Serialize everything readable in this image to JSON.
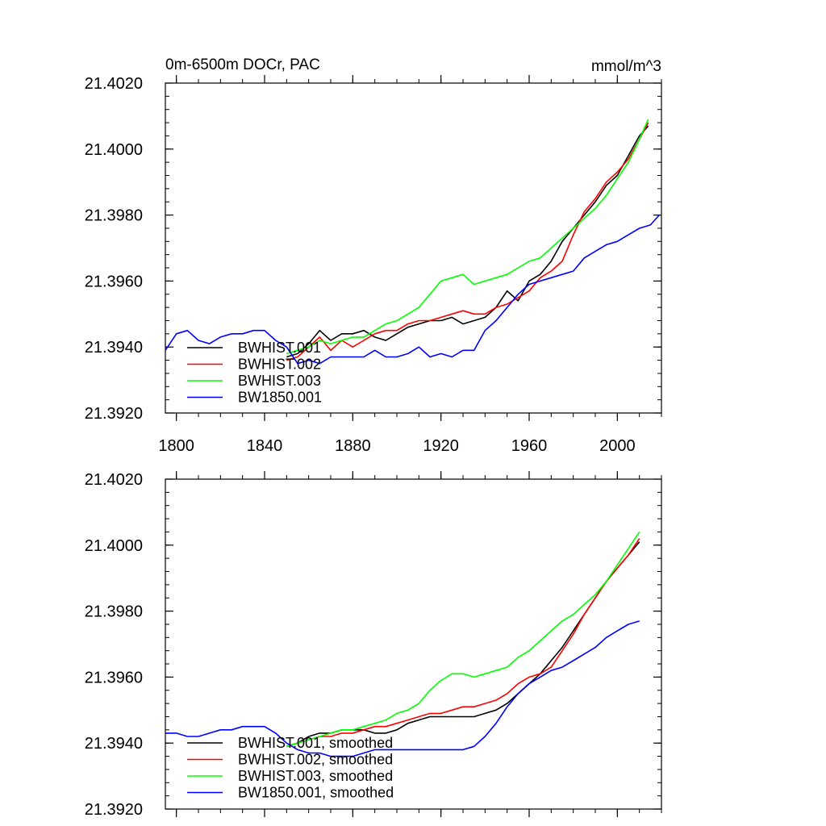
{
  "figure": {
    "title_left": "0m-6500m DOCr, PAC",
    "title_right": "mmol/m^3"
  },
  "colors": {
    "BWHIST.001": "#000000",
    "BWHIST.002": "#ff0000",
    "BWHIST.003": "#00ff00",
    "BW1850.001": "#0000ff"
  },
  "chart_data": [
    {
      "type": "line",
      "panel": "annual",
      "title": "0m-6500m DOCr, PAC",
      "units": "mmol/m^3",
      "xlim": [
        1795,
        2020
      ],
      "ylim": [
        21.392,
        21.402
      ],
      "xticks": [
        1800,
        1840,
        1880,
        1920,
        1960,
        2000
      ],
      "xtick_labels": [
        "1800",
        "1840",
        "1880",
        "1920",
        "1960",
        "2000"
      ],
      "show_xtick_labels": true,
      "yticks": [
        21.392,
        21.394,
        21.396,
        21.398,
        21.4,
        21.402
      ],
      "ytick_labels": [
        "21.3920",
        "21.3940",
        "21.3960",
        "21.3980",
        "21.4000",
        "21.4020"
      ],
      "legend_position": "lower-left",
      "series": [
        {
          "name": "BWHIST.001",
          "color": "#000000",
          "x": [
            1850,
            1855,
            1860,
            1865,
            1870,
            1875,
            1880,
            1885,
            1890,
            1895,
            1900,
            1905,
            1910,
            1915,
            1920,
            1925,
            1930,
            1935,
            1940,
            1945,
            1950,
            1955,
            1960,
            1965,
            1970,
            1975,
            1980,
            1985,
            1990,
            1995,
            2000,
            2005,
            2010,
            2014
          ],
          "values": [
            21.3937,
            21.3938,
            21.3941,
            21.3945,
            21.3942,
            21.3944,
            21.3944,
            21.3945,
            21.3943,
            21.3942,
            21.3944,
            21.3946,
            21.3947,
            21.3948,
            21.3948,
            21.3949,
            21.3947,
            21.3948,
            21.3949,
            21.3952,
            21.3957,
            21.3954,
            21.396,
            21.3962,
            21.3966,
            21.3972,
            21.3976,
            21.398,
            21.3984,
            21.3989,
            21.3992,
            21.3998,
            21.4004,
            21.4007
          ]
        },
        {
          "name": "BWHIST.002",
          "color": "#ff0000",
          "x": [
            1850,
            1855,
            1860,
            1865,
            1870,
            1875,
            1880,
            1885,
            1890,
            1895,
            1900,
            1905,
            1910,
            1915,
            1920,
            1925,
            1930,
            1935,
            1940,
            1945,
            1950,
            1955,
            1960,
            1965,
            1970,
            1975,
            1980,
            1985,
            1990,
            1995,
            2000,
            2005,
            2010,
            2014
          ],
          "values": [
            21.3936,
            21.3937,
            21.394,
            21.3943,
            21.3939,
            21.3942,
            21.394,
            21.3942,
            21.3944,
            21.3945,
            21.3945,
            21.3947,
            21.3948,
            21.3948,
            21.3949,
            21.395,
            21.3951,
            21.395,
            21.395,
            21.3952,
            21.3953,
            21.3955,
            21.3957,
            21.3961,
            21.3963,
            21.3966,
            21.3974,
            21.3981,
            21.3985,
            21.399,
            21.3993,
            21.3997,
            21.4003,
            21.4008
          ]
        },
        {
          "name": "BWHIST.003",
          "color": "#00ff00",
          "x": [
            1850,
            1855,
            1860,
            1865,
            1870,
            1875,
            1880,
            1885,
            1890,
            1895,
            1900,
            1905,
            1910,
            1915,
            1920,
            1925,
            1930,
            1935,
            1940,
            1945,
            1950,
            1955,
            1960,
            1965,
            1970,
            1975,
            1980,
            1985,
            1990,
            1995,
            2000,
            2005,
            2010,
            2014
          ],
          "values": [
            21.3938,
            21.3939,
            21.394,
            21.3942,
            21.3941,
            21.3942,
            21.3943,
            21.3943,
            21.3945,
            21.3947,
            21.3948,
            21.395,
            21.3952,
            21.3956,
            21.396,
            21.3961,
            21.3962,
            21.3959,
            21.396,
            21.3961,
            21.3962,
            21.3964,
            21.3966,
            21.3967,
            21.397,
            21.3973,
            21.3976,
            21.3979,
            21.3982,
            21.3986,
            21.3991,
            21.3996,
            21.4003,
            21.4009
          ]
        },
        {
          "name": "BW1850.001",
          "color": "#0000ff",
          "x": [
            1795,
            1800,
            1805,
            1810,
            1815,
            1820,
            1825,
            1830,
            1835,
            1840,
            1845,
            1850,
            1855,
            1860,
            1865,
            1870,
            1875,
            1880,
            1885,
            1890,
            1895,
            1900,
            1905,
            1910,
            1915,
            1920,
            1925,
            1930,
            1935,
            1940,
            1945,
            1950,
            1955,
            1960,
            1965,
            1970,
            1975,
            1980,
            1985,
            1990,
            1995,
            2000,
            2005,
            2010,
            2015,
            2019
          ],
          "values": [
            21.3939,
            21.3944,
            21.3945,
            21.3942,
            21.3941,
            21.3943,
            21.3944,
            21.3944,
            21.3945,
            21.3945,
            21.3942,
            21.394,
            21.3935,
            21.3936,
            21.3935,
            21.3937,
            21.3937,
            21.3937,
            21.3937,
            21.3939,
            21.3937,
            21.3937,
            21.3938,
            21.394,
            21.3937,
            21.3938,
            21.3937,
            21.3939,
            21.3939,
            21.3945,
            21.3948,
            21.3952,
            21.3956,
            21.3959,
            21.396,
            21.3961,
            21.3962,
            21.3963,
            21.3967,
            21.3969,
            21.3971,
            21.3972,
            21.3974,
            21.3976,
            21.3977,
            21.398
          ]
        }
      ]
    },
    {
      "type": "line",
      "panel": "smoothed",
      "xlim": [
        1795,
        2020
      ],
      "ylim": [
        21.392,
        21.402
      ],
      "xticks": [
        1800,
        1840,
        1880,
        1920,
        1960,
        2000
      ],
      "xtick_labels": [
        "1800",
        "1840",
        "1880",
        "1920",
        "1960",
        "2000"
      ],
      "show_xtick_labels": false,
      "yticks": [
        21.392,
        21.394,
        21.396,
        21.398,
        21.4,
        21.402
      ],
      "ytick_labels": [
        "21.3920",
        "21.3940",
        "21.3960",
        "21.3980",
        "21.4000",
        "21.4020"
      ],
      "legend_position": "lower-left",
      "series": [
        {
          "name": "BWHIST.001, smoothed",
          "color": "#000000",
          "x": [
            1850,
            1855,
            1860,
            1865,
            1870,
            1875,
            1880,
            1885,
            1890,
            1895,
            1900,
            1905,
            1910,
            1915,
            1920,
            1925,
            1930,
            1935,
            1940,
            1945,
            1950,
            1955,
            1960,
            1965,
            1970,
            1975,
            1980,
            1985,
            1990,
            1995,
            2000,
            2005,
            2010
          ],
          "values": [
            21.3939,
            21.394,
            21.3942,
            21.3943,
            21.3943,
            21.3944,
            21.3944,
            21.3944,
            21.3943,
            21.3943,
            21.3944,
            21.3946,
            21.3947,
            21.3948,
            21.3948,
            21.3948,
            21.3948,
            21.3948,
            21.3949,
            21.395,
            21.3952,
            21.3955,
            21.3958,
            21.3961,
            21.3965,
            21.3969,
            21.3974,
            21.3979,
            21.3984,
            21.3989,
            21.3993,
            21.3997,
            21.4001
          ]
        },
        {
          "name": "BWHIST.002, smoothed",
          "color": "#ff0000",
          "x": [
            1850,
            1855,
            1860,
            1865,
            1870,
            1875,
            1880,
            1885,
            1890,
            1895,
            1900,
            1905,
            1910,
            1915,
            1920,
            1925,
            1930,
            1935,
            1940,
            1945,
            1950,
            1955,
            1960,
            1965,
            1970,
            1975,
            1980,
            1985,
            1990,
            1995,
            2000,
            2005,
            2010
          ],
          "values": [
            21.3939,
            21.394,
            21.3941,
            21.3942,
            21.3942,
            21.3943,
            21.3943,
            21.3944,
            21.3945,
            21.3945,
            21.3946,
            21.3947,
            21.3948,
            21.3949,
            21.3949,
            21.395,
            21.3951,
            21.3951,
            21.3952,
            21.3953,
            21.3955,
            21.3958,
            21.396,
            21.3961,
            21.3963,
            21.3968,
            21.3973,
            21.3979,
            21.3984,
            21.3989,
            21.3993,
            21.3997,
            21.4002
          ]
        },
        {
          "name": "BWHIST.003, smoothed",
          "color": "#00ff00",
          "x": [
            1850,
            1855,
            1860,
            1865,
            1870,
            1875,
            1880,
            1885,
            1890,
            1895,
            1900,
            1905,
            1910,
            1915,
            1920,
            1925,
            1930,
            1935,
            1940,
            1945,
            1950,
            1955,
            1960,
            1965,
            1970,
            1975,
            1980,
            1985,
            1990,
            1995,
            2000,
            2005,
            2010
          ],
          "values": [
            21.3939,
            21.394,
            21.3941,
            21.3942,
            21.3943,
            21.3944,
            21.3944,
            21.3945,
            21.3946,
            21.3947,
            21.3949,
            21.395,
            21.3952,
            21.3956,
            21.3959,
            21.3961,
            21.3961,
            21.396,
            21.3961,
            21.3962,
            21.3963,
            21.3966,
            21.3968,
            21.3971,
            21.3974,
            21.3977,
            21.3979,
            21.3982,
            21.3985,
            21.3989,
            21.3994,
            21.3999,
            21.4004
          ]
        },
        {
          "name": "BW1850.001, smoothed",
          "color": "#0000ff",
          "x": [
            1795,
            1800,
            1805,
            1810,
            1815,
            1820,
            1825,
            1830,
            1835,
            1840,
            1845,
            1850,
            1855,
            1860,
            1865,
            1870,
            1875,
            1880,
            1885,
            1890,
            1895,
            1900,
            1905,
            1910,
            1915,
            1920,
            1925,
            1930,
            1935,
            1940,
            1945,
            1950,
            1955,
            1960,
            1965,
            1970,
            1975,
            1980,
            1985,
            1990,
            1995,
            2000,
            2005,
            2010
          ],
          "values": [
            21.3943,
            21.3943,
            21.3942,
            21.3942,
            21.3943,
            21.3944,
            21.3944,
            21.3945,
            21.3945,
            21.3945,
            21.3943,
            21.394,
            21.3938,
            21.3937,
            21.3937,
            21.3936,
            21.3936,
            21.3936,
            21.3937,
            21.3938,
            21.3938,
            21.3938,
            21.3938,
            21.3938,
            21.3938,
            21.3938,
            21.3938,
            21.3938,
            21.3939,
            21.3942,
            21.3946,
            21.3951,
            21.3955,
            21.3958,
            21.396,
            21.3962,
            21.3963,
            21.3965,
            21.3967,
            21.3969,
            21.3972,
            21.3974,
            21.3976,
            21.3977
          ]
        }
      ]
    }
  ]
}
